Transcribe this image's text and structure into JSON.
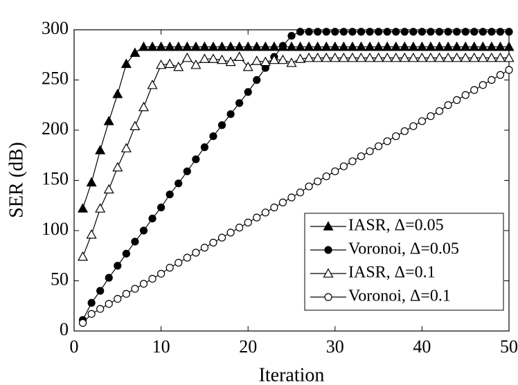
{
  "chart_data": {
    "type": "line",
    "x_label": "Iteration",
    "y_label": "SER (dB)",
    "x": [
      1,
      2,
      3,
      4,
      5,
      6,
      7,
      8,
      9,
      10,
      11,
      12,
      13,
      14,
      15,
      16,
      17,
      18,
      19,
      20,
      21,
      22,
      23,
      24,
      25,
      26,
      27,
      28,
      29,
      30,
      31,
      32,
      33,
      34,
      35,
      36,
      37,
      38,
      39,
      40,
      41,
      42,
      43,
      44,
      45,
      46,
      47,
      48,
      49,
      50
    ],
    "series": [
      {
        "name": "IASR, Δ=0.05",
        "color": "#000000",
        "marker": "triangle",
        "filled": true,
        "values": [
          122,
          148,
          180,
          209,
          236,
          266,
          277,
          283,
          283,
          283,
          283,
          283,
          283,
          283,
          283,
          283,
          283,
          283,
          283,
          283,
          283,
          283,
          283,
          283,
          283,
          283,
          283,
          283,
          283,
          283,
          283,
          283,
          283,
          283,
          283,
          283,
          283,
          283,
          283,
          283,
          283,
          283,
          283,
          283,
          283,
          283,
          283,
          283,
          283,
          283
        ]
      },
      {
        "name": "Voronoi, Δ=0.05",
        "color": "#000000",
        "marker": "circle",
        "filled": true,
        "values": [
          11,
          28,
          40,
          53,
          65,
          77,
          89,
          100,
          112,
          123,
          136,
          147,
          159,
          171,
          183,
          194,
          205,
          216,
          227,
          238,
          250,
          262,
          273,
          284,
          294,
          298,
          298,
          298,
          298,
          298,
          298,
          298,
          298,
          298,
          298,
          298,
          298,
          298,
          298,
          298,
          298,
          298,
          298,
          298,
          298,
          298,
          298,
          298,
          298,
          298
        ]
      },
      {
        "name": "IASR, Δ=0.1",
        "color": "#000000",
        "marker": "triangle",
        "filled": false,
        "values": [
          74,
          96,
          122,
          141,
          163,
          182,
          204,
          223,
          245,
          265,
          266,
          263,
          272,
          265,
          271,
          271,
          270,
          268,
          273,
          263,
          269,
          268,
          270,
          270,
          267,
          271,
          272,
          272,
          272,
          272,
          272,
          272,
          272,
          272,
          272,
          272,
          272,
          272,
          272,
          272,
          272,
          272,
          272,
          272,
          272,
          272,
          272,
          272,
          272,
          272
        ]
      },
      {
        "name": "Voronoi, Δ=0.1",
        "color": "#000000",
        "marker": "circle",
        "filled": false,
        "values": [
          8,
          17,
          22,
          27,
          32,
          37,
          42,
          47,
          52,
          57,
          63,
          68,
          73,
          78,
          83,
          88,
          93,
          98,
          103,
          108,
          113,
          118,
          123,
          128,
          133,
          138,
          144,
          149,
          154,
          159,
          164,
          169,
          174,
          179,
          184,
          189,
          194,
          199,
          204,
          209,
          214,
          219,
          225,
          230,
          235,
          240,
          245,
          250,
          255,
          260
        ]
      }
    ],
    "xlim": [
      0,
      50
    ],
    "xticks": [
      0,
      10,
      20,
      30,
      40,
      50
    ],
    "ylim": [
      0,
      300
    ],
    "yticks": [
      0,
      50,
      100,
      150,
      200,
      250,
      300
    ],
    "grid": false,
    "legend_position": "lower right"
  }
}
